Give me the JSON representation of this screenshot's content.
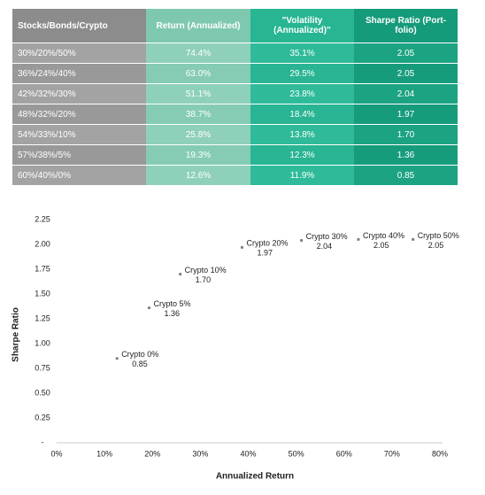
{
  "table": {
    "header": [
      "Stocks/Bonds/Crypto",
      "Return (Annualized)",
      "\"Volatility (Annualized)\"",
      "Sharpe Ratio (Port-folio)"
    ],
    "rows": [
      [
        "30%/20%/50%",
        "74.4%",
        "35.1%",
        "2.05"
      ],
      [
        "36%/24%/40%",
        "63.0%",
        "29.5%",
        "2.05"
      ],
      [
        "42%/32%/30%",
        "51.1%",
        "23.8%",
        "2.04"
      ],
      [
        "48%/32%/20%",
        "38.7%",
        "18.4%",
        "1.97"
      ],
      [
        "54%/33%/10%",
        "25.8%",
        "13.8%",
        "1.70"
      ],
      [
        "57%/38%/5%",
        "19.3%",
        "12.3%",
        "1.36"
      ],
      [
        "60%/40%/0%",
        "12.6%",
        "11.9%",
        "0.85"
      ]
    ]
  },
  "chart_data": {
    "type": "scatter",
    "x_label": "Annualized Return",
    "y_label": "Sharpe Ratio",
    "x": [
      12.6,
      19.3,
      25.8,
      38.7,
      51.1,
      63.0,
      74.4
    ],
    "values": [
      0.85,
      1.36,
      1.7,
      1.97,
      2.04,
      2.05,
      2.05
    ],
    "value_labels": [
      "0.85",
      "1.36",
      "1.70",
      "1.97",
      "2.04",
      "2.05",
      "2.05"
    ],
    "labels": [
      "Crypto 0%",
      "Crypto 5%",
      "Crypto 10%",
      "Crypto 20%",
      "Crypto 30%",
      "Crypto 40%",
      "Crypto 50%"
    ],
    "color": "#7f7f7f",
    "xlim": [
      0,
      80
    ],
    "ylim": [
      0,
      2.25
    ],
    "xticks": [
      {
        "value": 0,
        "label": "0%"
      },
      {
        "value": 10,
        "label": "10%"
      },
      {
        "value": 20,
        "label": "20%"
      },
      {
        "value": 30,
        "label": "30%"
      },
      {
        "value": 40,
        "label": "40%"
      },
      {
        "value": 50,
        "label": "50%"
      },
      {
        "value": 60,
        "label": "60%"
      },
      {
        "value": 70,
        "label": "70%"
      },
      {
        "value": 80,
        "label": "80%"
      }
    ],
    "yticks": [
      {
        "value": 0,
        "label": "-"
      },
      0.25,
      {
        "value": 0.5,
        "label": "0.50"
      },
      0.75,
      {
        "value": 1,
        "label": "1.00"
      },
      1.25,
      {
        "value": 1.5,
        "label": "1.50"
      },
      1.75,
      {
        "value": 2,
        "label": "2.00"
      },
      2.25
    ]
  }
}
